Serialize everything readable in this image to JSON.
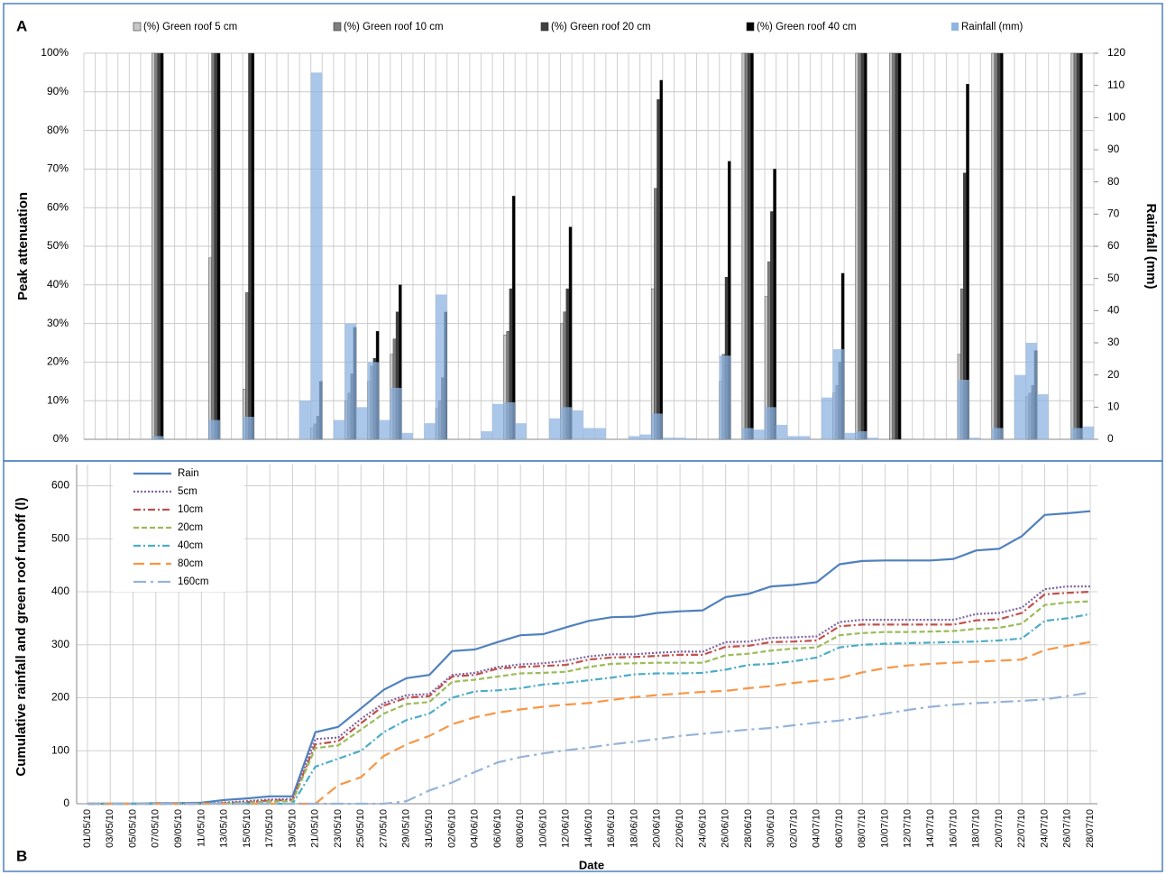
{
  "chart_data": [
    {
      "type": "bar",
      "panel_label": "A",
      "y_label": "Peak attenuation",
      "y2_label": "Rainfall (mm)",
      "ylim": [
        0,
        100
      ],
      "yticks": [
        {
          "value": 0,
          "label": "0%"
        },
        {
          "value": 10,
          "label": "10%"
        },
        {
          "value": 20,
          "label": "20%"
        },
        {
          "value": 30,
          "label": "30%"
        },
        {
          "value": 40,
          "label": "40%"
        },
        {
          "value": 50,
          "label": "50%"
        },
        {
          "value": 60,
          "label": "60%"
        },
        {
          "value": 70,
          "label": "70%"
        },
        {
          "value": 80,
          "label": "80%"
        },
        {
          "value": 90,
          "label": "90%"
        },
        {
          "value": 100,
          "label": "100%"
        }
      ],
      "y2lim": [
        0,
        120
      ],
      "y2ticks": [
        0,
        10,
        20,
        30,
        40,
        50,
        60,
        70,
        80,
        90,
        100,
        110,
        120
      ],
      "grid": true,
      "series": [
        {
          "name": "(%) Green roof 5 cm",
          "color": "#c8c8c8",
          "values": [
            null,
            null,
            null,
            null,
            null,
            null,
            100,
            null,
            null,
            null,
            null,
            47,
            null,
            null,
            13,
            null,
            null,
            null,
            null,
            null,
            3,
            null,
            null,
            10,
            null,
            15,
            null,
            22,
            null,
            null,
            null,
            8,
            null,
            null,
            null,
            null,
            null,
            27,
            null,
            null,
            null,
            null,
            30,
            null,
            null,
            null,
            null,
            null,
            null,
            null,
            39,
            null,
            null,
            null,
            null,
            null,
            15,
            null,
            100,
            null,
            37,
            null,
            null,
            null,
            null,
            null,
            12,
            null,
            100,
            null,
            null,
            100,
            null,
            null,
            null,
            null,
            null,
            22,
            null,
            null,
            100,
            null,
            null,
            11,
            null,
            null,
            null,
            100,
            null
          ]
        },
        {
          "name": "(%) Green roof 10 cm",
          "color": "#7f7f7f",
          "values": [
            null,
            null,
            null,
            null,
            null,
            null,
            100,
            null,
            null,
            null,
            null,
            100,
            null,
            null,
            38,
            null,
            null,
            null,
            null,
            null,
            4,
            null,
            null,
            12,
            null,
            19,
            null,
            26,
            null,
            null,
            null,
            10,
            null,
            null,
            null,
            null,
            null,
            28,
            null,
            null,
            null,
            null,
            33,
            null,
            null,
            null,
            null,
            null,
            null,
            null,
            65,
            null,
            null,
            null,
            null,
            null,
            22,
            null,
            100,
            null,
            46,
            null,
            null,
            null,
            null,
            null,
            14,
            null,
            100,
            null,
            null,
            100,
            null,
            null,
            null,
            null,
            null,
            39,
            null,
            null,
            100,
            null,
            null,
            12,
            null,
            null,
            null,
            100,
            null
          ]
        },
        {
          "name": "(%) Green roof 20 cm",
          "color": "#404040",
          "values": [
            null,
            null,
            null,
            null,
            null,
            null,
            100,
            null,
            null,
            null,
            null,
            100,
            null,
            null,
            100,
            null,
            null,
            null,
            null,
            null,
            6,
            null,
            null,
            17,
            null,
            21,
            null,
            33,
            null,
            null,
            null,
            16,
            null,
            null,
            null,
            null,
            null,
            39,
            null,
            null,
            null,
            null,
            39,
            null,
            null,
            null,
            null,
            null,
            null,
            null,
            88,
            null,
            null,
            null,
            null,
            null,
            42,
            null,
            100,
            null,
            59,
            null,
            null,
            null,
            null,
            null,
            20,
            null,
            100,
            null,
            null,
            100,
            null,
            null,
            null,
            null,
            null,
            69,
            null,
            null,
            100,
            null,
            null,
            14,
            null,
            null,
            null,
            100,
            null
          ]
        },
        {
          "name": "(%) Green roof 40 cm",
          "color": "#000000",
          "values": [
            null,
            null,
            null,
            null,
            null,
            null,
            100,
            null,
            null,
            null,
            null,
            100,
            null,
            null,
            100,
            null,
            null,
            null,
            null,
            null,
            15,
            null,
            null,
            29,
            null,
            28,
            null,
            40,
            null,
            null,
            null,
            33,
            null,
            null,
            null,
            null,
            null,
            63,
            null,
            null,
            null,
            null,
            55,
            null,
            null,
            null,
            null,
            null,
            null,
            null,
            93,
            null,
            null,
            null,
            null,
            null,
            72,
            null,
            100,
            null,
            70,
            null,
            null,
            null,
            null,
            null,
            43,
            null,
            100,
            null,
            null,
            100,
            null,
            null,
            null,
            null,
            null,
            92,
            null,
            null,
            100,
            null,
            null,
            23,
            null,
            null,
            null,
            100,
            null
          ]
        },
        {
          "name": "Rainfall (mm)",
          "color": "#8db4e2",
          "axis": "y2",
          "values": [
            null,
            null,
            null,
            null,
            null,
            null,
            1,
            null,
            null,
            null,
            null,
            6,
            null,
            null,
            7,
            null,
            null,
            null,
            null,
            12,
            114,
            null,
            6,
            36,
            10,
            24,
            6,
            16,
            2,
            null,
            5,
            45,
            null,
            null,
            null,
            2.5,
            11,
            11.5,
            5,
            null,
            null,
            6.5,
            10,
            9,
            3.5,
            3.5,
            null,
            null,
            1,
            1.5,
            8,
            0.5,
            0.5,
            0.3,
            null,
            null,
            26,
            null,
            3.5,
            3,
            10,
            4.5,
            1,
            1,
            null,
            13,
            28,
            2,
            2.5,
            0.5,
            null,
            null,
            null,
            null,
            null,
            null,
            null,
            18.5,
            0.5,
            null,
            3.5,
            null,
            20,
            30,
            14,
            null,
            null,
            3.5,
            4
          ]
        }
      ]
    },
    {
      "type": "line",
      "panel_label": "B",
      "x_label": "Date",
      "y_label": "Cumulative rainfall and green roof runoff (l)",
      "categories": [
        "01/05/10",
        "03/05/10",
        "05/05/10",
        "07/05/10",
        "09/05/10",
        "11/05/10",
        "13/05/10",
        "15/05/10",
        "17/05/10",
        "19/05/10",
        "21/05/10",
        "23/05/10",
        "25/05/10",
        "27/05/10",
        "29/05/10",
        "31/05/10",
        "02/06/10",
        "04/06/10",
        "06/06/10",
        "08/06/10",
        "10/06/10",
        "12/06/10",
        "14/06/10",
        "16/06/10",
        "18/06/10",
        "20/06/10",
        "22/06/10",
        "24/06/10",
        "26/06/10",
        "28/06/10",
        "30/06/10",
        "02/07/10",
        "04/07/10",
        "06/07/10",
        "08/07/10",
        "10/07/10",
        "12/07/10",
        "14/07/10",
        "16/07/10",
        "18/07/10",
        "20/07/10",
        "22/07/10",
        "24/07/10",
        "26/07/10",
        "28/07/10"
      ],
      "ylim": [
        0,
        640
      ],
      "yticks": [
        0,
        100,
        200,
        300,
        400,
        500,
        600
      ],
      "grid": true,
      "series": [
        {
          "name": "Rain",
          "color": "#4f81bd",
          "dash": "solid",
          "values": [
            0,
            0,
            0,
            1,
            1,
            2,
            7,
            10,
            14,
            14,
            135,
            145,
            180,
            215,
            237,
            243,
            288,
            291,
            305,
            318,
            320,
            333,
            345,
            352,
            353,
            360,
            363,
            365,
            390,
            396,
            410,
            413,
            418,
            452,
            458,
            459,
            459,
            459,
            462,
            478,
            481,
            505,
            545,
            548,
            552
          ]
        },
        {
          "name": "5cm",
          "color": "#8064a2",
          "dash": "dotted",
          "values": [
            0,
            0,
            0,
            0,
            0,
            0,
            2,
            5,
            8,
            9,
            122,
            125,
            160,
            190,
            205,
            207,
            243,
            247,
            258,
            263,
            265,
            270,
            278,
            282,
            282,
            285,
            287,
            287,
            305,
            306,
            313,
            314,
            316,
            343,
            347,
            347,
            347,
            347,
            347,
            358,
            360,
            370,
            405,
            410,
            410
          ]
        },
        {
          "name": "10cm",
          "color": "#c0504d",
          "dash": "dash-dot",
          "values": [
            0,
            0,
            0,
            0,
            0,
            0,
            1,
            3,
            6,
            7,
            112,
            118,
            152,
            185,
            200,
            203,
            240,
            243,
            255,
            258,
            260,
            262,
            272,
            276,
            277,
            279,
            281,
            281,
            296,
            298,
            305,
            306,
            308,
            335,
            338,
            338,
            338,
            338,
            338,
            346,
            348,
            360,
            395,
            398,
            400
          ]
        },
        {
          "name": "20cm",
          "color": "#9bbb59",
          "dash": "dashed",
          "values": [
            0,
            0,
            0,
            0,
            0,
            0,
            0,
            2,
            4,
            5,
            105,
            110,
            140,
            170,
            188,
            192,
            230,
            234,
            240,
            246,
            247,
            249,
            258,
            264,
            265,
            266,
            266,
            266,
            280,
            283,
            289,
            293,
            295,
            318,
            322,
            324,
            324,
            325,
            326,
            330,
            332,
            340,
            375,
            380,
            382
          ]
        },
        {
          "name": "40cm",
          "color": "#4bacc6",
          "dash": "dash-dot",
          "values": [
            0,
            0,
            0,
            0,
            0,
            0,
            0,
            0,
            0,
            0,
            70,
            85,
            100,
            135,
            158,
            170,
            200,
            212,
            214,
            218,
            225,
            228,
            233,
            238,
            244,
            246,
            246,
            247,
            253,
            262,
            264,
            269,
            276,
            295,
            300,
            302,
            303,
            304,
            305,
            306,
            308,
            312,
            345,
            350,
            358
          ]
        },
        {
          "name": "80cm",
          "color": "#f79646",
          "dash": "long-dash",
          "values": [
            0,
            0,
            0,
            0,
            0,
            0,
            0,
            0,
            0,
            0,
            0,
            35,
            50,
            90,
            112,
            128,
            150,
            163,
            172,
            178,
            183,
            187,
            190,
            196,
            201,
            205,
            208,
            211,
            213,
            218,
            222,
            228,
            232,
            237,
            248,
            256,
            261,
            264,
            266,
            268,
            270,
            272,
            290,
            298,
            305
          ]
        },
        {
          "name": "160cm",
          "color": "#95b3d7",
          "dash": "long-dash-dot",
          "values": [
            0,
            0,
            0,
            0,
            0,
            0,
            0,
            0,
            0,
            0,
            0,
            0,
            0,
            0,
            5,
            25,
            40,
            60,
            78,
            88,
            95,
            101,
            106,
            112,
            117,
            122,
            128,
            132,
            136,
            140,
            143,
            148,
            153,
            157,
            163,
            170,
            177,
            183,
            187,
            190,
            192,
            194,
            197,
            203,
            210
          ]
        }
      ]
    }
  ]
}
